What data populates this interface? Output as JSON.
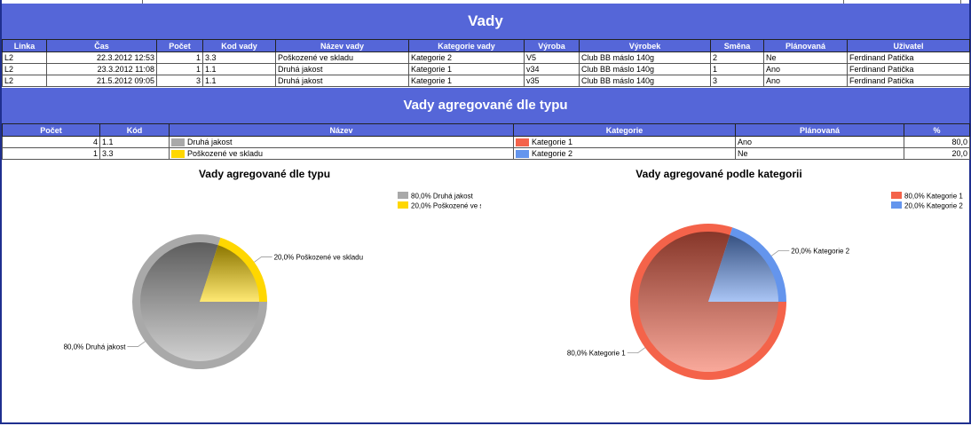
{
  "section1": {
    "title": "Vady",
    "headers": [
      "Linka",
      "Čas",
      "Počet",
      "Kod vady",
      "Název vady",
      "Kategorie vady",
      "Výroba",
      "Výrobek",
      "Směna",
      "Plánovaná",
      "Uživatel"
    ],
    "rows": [
      [
        "L2",
        "22.3.2012 12:53",
        "1",
        "3.3",
        "Poškozené ve skladu",
        "Kategorie 2",
        "V5",
        "Club BB máslo 140g",
        "2",
        "Ne",
        "Ferdinand  Patička"
      ],
      [
        "L2",
        "23.3.2012 11:08",
        "1",
        "1.1",
        "Druhá jakost",
        "Kategorie 1",
        "v34",
        "Club BB máslo 140g",
        "1",
        "Ano",
        "Ferdinand  Patička"
      ],
      [
        "L2",
        "21.5.2012 09:05",
        "3",
        "1.1",
        "Druhá jakost",
        "Kategorie 1",
        "v35",
        "Club BB máslo 140g",
        "3",
        "Ano",
        "Ferdinand  Patička"
      ]
    ]
  },
  "section2": {
    "title": "Vady agregované dle typu",
    "headers": [
      "Počet",
      "Kód",
      "Název",
      "Kategorie",
      "Plánovaná",
      "%"
    ],
    "rows": [
      {
        "count": "4",
        "code": "1.1",
        "name": "Druhá jakost",
        "name_color": "#a9a9a9",
        "category": "Kategorie 1",
        "category_color": "#f4634a",
        "planned": "Ano",
        "percent": "80,0"
      },
      {
        "count": "1",
        "code": "3.3",
        "name": "Poškozené ve skladu",
        "name_color": "#ffd700",
        "category": "Kategorie 2",
        "category_color": "#6495ed",
        "planned": "Ne",
        "percent": "20,0"
      }
    ]
  },
  "chart_data": [
    {
      "type": "pie",
      "title": "Vady agregované dle typu",
      "legend_position": "top-right",
      "categories": [
        "Druhá jakost",
        "Poškozené ve skladu"
      ],
      "values": [
        80.0,
        20.0
      ],
      "labels": [
        "80,0% Druhá jakost",
        "20,0% Poškozené ve skladu"
      ],
      "colors": [
        "#a9a9a9",
        "#ffd700"
      ]
    },
    {
      "type": "pie",
      "title": "Vady agregované podle kategorii",
      "legend_position": "top-right",
      "categories": [
        "Kategorie 1",
        "Kategorie 2"
      ],
      "values": [
        80.0,
        20.0
      ],
      "labels": [
        "80,0% Kategorie 1",
        "20,0% Kategorie 2"
      ],
      "colors": [
        "#f4634a",
        "#6495ed"
      ]
    }
  ]
}
